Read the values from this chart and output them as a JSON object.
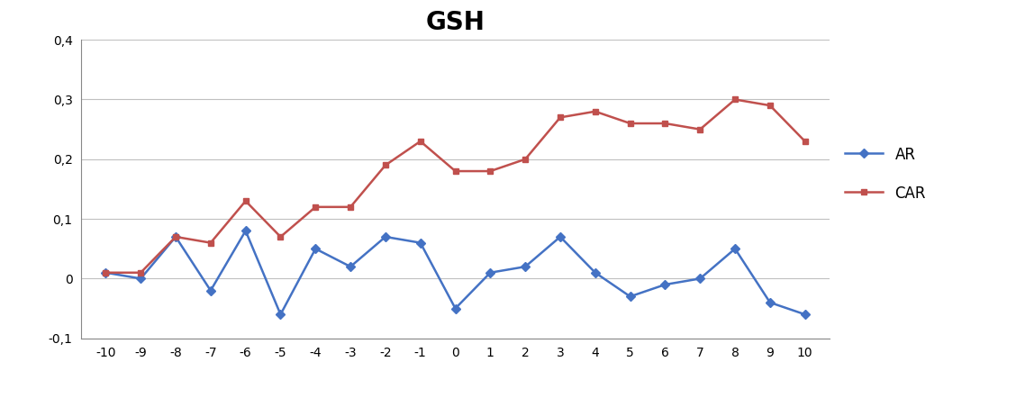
{
  "title": "GSH",
  "x": [
    -10,
    -9,
    -8,
    -7,
    -6,
    -5,
    -4,
    -3,
    -2,
    -1,
    0,
    1,
    2,
    3,
    4,
    5,
    6,
    7,
    8,
    9,
    10
  ],
  "AR": [
    0.01,
    0.0,
    0.07,
    -0.02,
    0.08,
    -0.06,
    0.05,
    0.02,
    0.07,
    0.06,
    -0.05,
    0.01,
    0.02,
    0.07,
    0.01,
    -0.03,
    -0.01,
    0.0,
    0.05,
    -0.04,
    -0.06
  ],
  "CAR": [
    0.01,
    0.01,
    0.07,
    0.06,
    0.13,
    0.07,
    0.12,
    0.12,
    0.19,
    0.23,
    0.18,
    0.18,
    0.2,
    0.27,
    0.28,
    0.26,
    0.26,
    0.25,
    0.3,
    0.29,
    0.23
  ],
  "AR_color": "#4472C4",
  "CAR_color": "#C0504D",
  "AR_marker": "D",
  "CAR_marker": "s",
  "ylim": [
    -0.1,
    0.4
  ],
  "yticks": [
    -0.1,
    0.0,
    0.1,
    0.2,
    0.3,
    0.4
  ],
  "ytick_labels": [
    "-0,1",
    "0",
    "0,1",
    "0,2",
    "0,3",
    "0,4"
  ],
  "title_fontsize": 20,
  "title_fontweight": "bold",
  "grid_color": "#C0C0C0",
  "background_color": "#FFFFFF",
  "legend_labels": [
    "AR",
    "CAR"
  ],
  "legend_fontsize": 12
}
